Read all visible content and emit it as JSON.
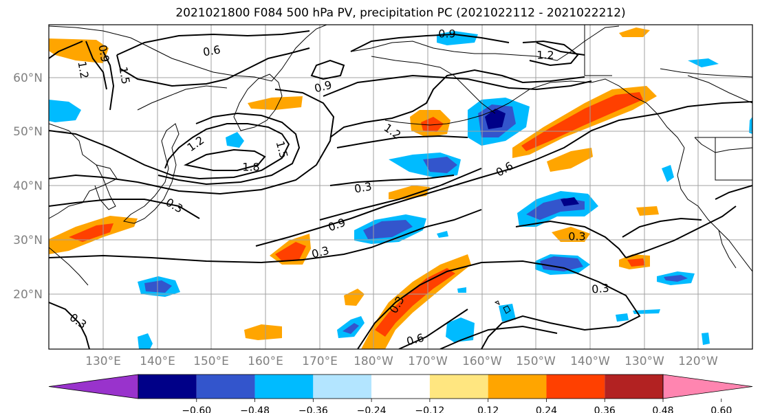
{
  "title": "2021021800 F084 500 hPa PV, precipitation PC (2021022112 - 2021022212)",
  "lat_labels": [
    "60°N",
    "50°N",
    "40°N",
    "30°N",
    "20°N"
  ],
  "lon_labels": [
    "130°E",
    "140°E",
    "150°E",
    "160°E",
    "170°E",
    "180°W",
    "170°W",
    "160°W",
    "150°W",
    "140°W",
    "130°W",
    "120°W"
  ],
  "contour_levels": [
    "0.3",
    "0.6",
    "0.9",
    "1.2",
    "1.5",
    "1.8"
  ],
  "colorbar": {
    "ticks": [
      "−0.60",
      "−0.48",
      "−0.36",
      "−0.24",
      "−0.12",
      "0.12",
      "0.24",
      "0.36",
      "0.48",
      "0.60"
    ],
    "colors": [
      "#9933cc",
      "#000088",
      "#3355cc",
      "#00bbff",
      "#b3e5ff",
      "#ffffff",
      "#ffe680",
      "#ffa500",
      "#ff4000",
      "#b22222",
      "#ff85b0"
    ]
  },
  "contour_labels": [
    {
      "text": "0.6"
    },
    {
      "text": "0.9"
    },
    {
      "text": "1.2"
    },
    {
      "text": "0.9"
    },
    {
      "text": "1.5"
    },
    {
      "text": "1.2"
    },
    {
      "text": "1.8"
    },
    {
      "text": "1.5"
    },
    {
      "text": "0.3"
    },
    {
      "text": "0.3"
    },
    {
      "text": "0.9"
    },
    {
      "text": "0.3"
    },
    {
      "text": "0.6"
    },
    {
      "text": "1.2"
    },
    {
      "text": "0.3"
    },
    {
      "text": "0.3"
    },
    {
      "text": "0.3"
    },
    {
      "text": "0.6"
    },
    {
      "text": "0.3"
    },
    {
      "text": "0.9"
    },
    {
      "text": "1.2"
    }
  ]
}
